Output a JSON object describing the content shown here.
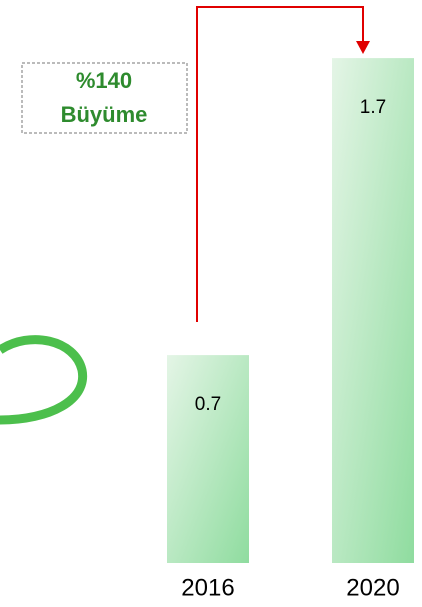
{
  "chart_data": {
    "type": "bar",
    "categories": [
      "2016",
      "2020"
    ],
    "values": [
      0.7,
      1.7
    ],
    "annotation": [
      "%140",
      "Büyüme"
    ],
    "color": "#8fdc9f",
    "arrow_color": "#e00000"
  }
}
